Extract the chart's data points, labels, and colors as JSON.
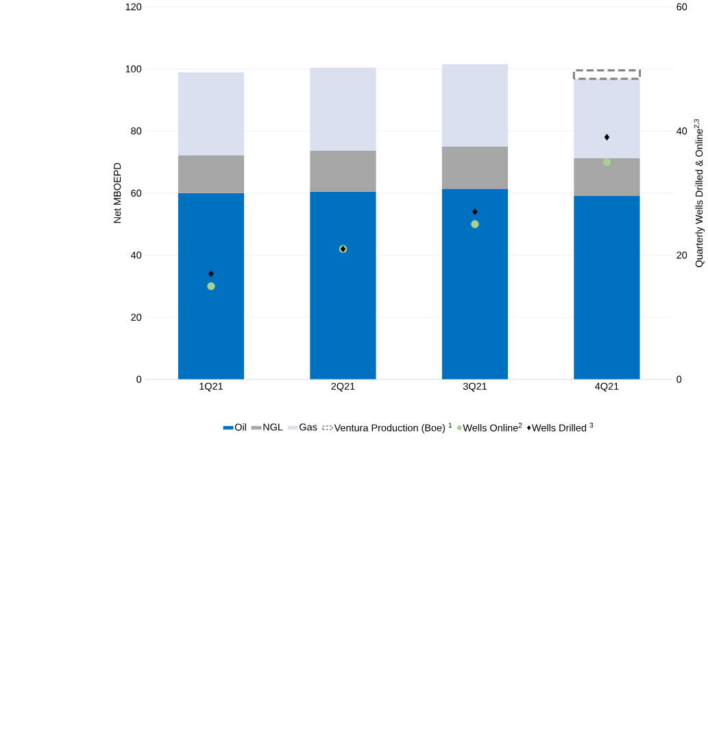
{
  "chart_data": {
    "type": "bar",
    "stacked": true,
    "categories": [
      "1Q21",
      "2Q21",
      "3Q21",
      "4Q21"
    ],
    "ylabel": "Net MBOEPD",
    "y2label": "Quarterly Wells Drilled & Online$^{2,3}$",
    "ylim": [
      0,
      120
    ],
    "yticks": [
      0,
      20,
      40,
      60,
      80,
      100,
      120
    ],
    "y2lim": [
      0,
      60
    ],
    "y2ticks": [
      0,
      20,
      40,
      60
    ],
    "grid": "y",
    "legend": "bottom",
    "series": [
      {
        "name": "Oil",
        "color": "#0070c0",
        "values": [
          60,
          60.5,
          61.4,
          59.2
        ]
      },
      {
        "name": "NGL",
        "color": "#a6a6a6",
        "values": [
          12.2,
          13.2,
          13.6,
          12.0
        ]
      },
      {
        "name": "Gas",
        "color": "#dae0f0",
        "values": [
          26.7,
          26.7,
          26.5,
          25.6
        ]
      },
      {
        "name": "Ventura Production (Boe) $^{1}$",
        "color": "#808080",
        "line_style": "dashed",
        "values": [
          null,
          null,
          null,
          2.7
        ]
      },
      {
        "name": "Wells Online$^{2}$",
        "type": "scatter",
        "axis": "y2",
        "marker": "circle",
        "color": "#a9d18e",
        "values": [
          15,
          21,
          25,
          35
        ]
      },
      {
        "name": "Wells Drilled $^{3}$",
        "type": "scatter",
        "axis": "y2",
        "marker": "diamond",
        "color": "#000000",
        "values": [
          17,
          21,
          27,
          39
        ]
      }
    ]
  }
}
